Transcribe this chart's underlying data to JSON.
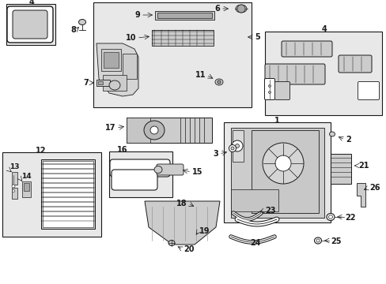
{
  "bg": "#ffffff",
  "lc": "#1a1a1a",
  "fc_light": "#e8e8e8",
  "fc_white": "#ffffff",
  "fc_mid": "#cccccc",
  "fc_dark": "#aaaaaa"
}
